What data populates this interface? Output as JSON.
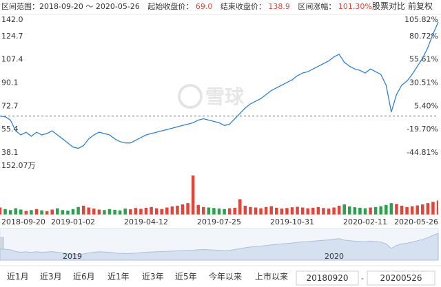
{
  "header": {
    "range": "区间范围：2018-09-20 ～ 2020-05-26",
    "start_label": "起始收盘价：",
    "start_value": "69.0",
    "end_label": "结束收盘价：",
    "end_value": "138.9",
    "change_label": "区间涨幅：",
    "change_value": "101.30%",
    "compare": "股票对比",
    "adjust": "前复权",
    "watermark": "雪球"
  },
  "chart_data": [
    {
      "type": "line",
      "color": "#2f80d8",
      "up_color": "#e0453a",
      "down_color": "#2e9e4f",
      "categories": [
        "2018-09-20",
        null,
        null,
        null,
        null,
        null,
        null,
        null,
        null,
        null,
        null,
        null,
        null,
        null,
        "2019-01-02",
        null,
        null,
        null,
        null,
        null,
        null,
        null,
        null,
        null,
        null,
        null,
        null,
        null,
        "2019-04-12",
        null,
        null,
        null,
        null,
        null,
        null,
        null,
        null,
        null,
        null,
        null,
        null,
        null,
        "2019-07-25",
        null,
        null,
        null,
        null,
        null,
        null,
        null,
        null,
        null,
        null,
        null,
        null,
        null,
        "2019-10-31",
        null,
        null,
        null,
        null,
        null,
        null,
        null,
        null,
        null,
        null,
        null,
        null,
        null,
        "2020-02-11",
        null,
        null,
        null,
        null,
        null,
        null,
        null,
        null,
        null,
        null,
        null,
        null,
        null,
        "2020-05-26"
      ],
      "values": [
        69.0,
        68.5,
        66,
        58,
        55,
        57,
        54,
        57,
        55,
        56,
        58,
        55,
        52,
        49,
        46,
        45,
        47,
        52,
        55,
        57,
        56,
        55,
        52,
        50,
        49,
        49,
        51,
        53,
        55,
        56,
        57,
        58,
        59,
        60,
        61,
        62,
        63,
        64,
        66,
        67,
        66,
        65,
        64,
        62,
        63,
        67,
        71,
        75,
        78,
        80,
        82,
        85,
        88,
        90,
        92,
        94,
        96,
        99,
        101,
        102,
        104,
        106,
        108,
        110,
        113,
        115,
        109,
        106,
        104,
        103,
        101,
        104,
        102,
        100,
        92,
        72,
        85,
        92,
        95,
        100,
        106,
        112,
        120,
        130,
        138.9
      ],
      "ylim": [
        38.1,
        142.0
      ],
      "yticks": [
        {
          "value": 142.0,
          "label": "142.0"
        },
        124.7,
        107.4,
        90.1,
        72.7,
        55.4,
        38.1
      ],
      "y2lim": [
        -44.81,
        105.82
      ],
      "y2ticks": [
        {
          "value": 105.82,
          "label": "105.82%"
        },
        {
          "value": 80.72,
          "label": "80.72%"
        },
        {
          "value": 55.61,
          "label": "55.61%"
        },
        {
          "value": 30.51,
          "label": "30.51%"
        },
        {
          "value": 5.4,
          "label": "5.40%"
        },
        {
          "value": -19.7,
          "label": "-19.70%"
        },
        {
          "value": -44.81,
          "label": "-44.81%"
        }
      ],
      "navigator_labels": [
        "2019",
        "2020"
      ]
    },
    {
      "type": "bar",
      "values": [
        28,
        22,
        18,
        25,
        20,
        15,
        18,
        22,
        17,
        14,
        20,
        25,
        18,
        16,
        22,
        30,
        35,
        28,
        24,
        20,
        18,
        22,
        19,
        17,
        24,
        21,
        26,
        23,
        27,
        30,
        25,
        22,
        28,
        32,
        35,
        40,
        45,
        152.07,
        38,
        30,
        28,
        26,
        24,
        22,
        25,
        27,
        60,
        35,
        30,
        28,
        25,
        30,
        33,
        27,
        24,
        26,
        29,
        31,
        28,
        25,
        27,
        30,
        26,
        24,
        28,
        35,
        40,
        32,
        29,
        27,
        25,
        28,
        30,
        33,
        38,
        45,
        42,
        35,
        30,
        33,
        36,
        40,
        45,
        50,
        55
      ],
      "ylim": [
        0,
        152.07
      ],
      "yticks": [
        {
          "value": 152.07,
          "label": "152.07万"
        }
      ]
    }
  ],
  "controls": {
    "ranges": [
      "近1月",
      "近3月",
      "近6月",
      "近1年",
      "近3年",
      "近5年",
      "今年以来",
      "上市以来"
    ],
    "selected": 7,
    "from": "20180920",
    "separator": "-",
    "to": "20200526"
  }
}
